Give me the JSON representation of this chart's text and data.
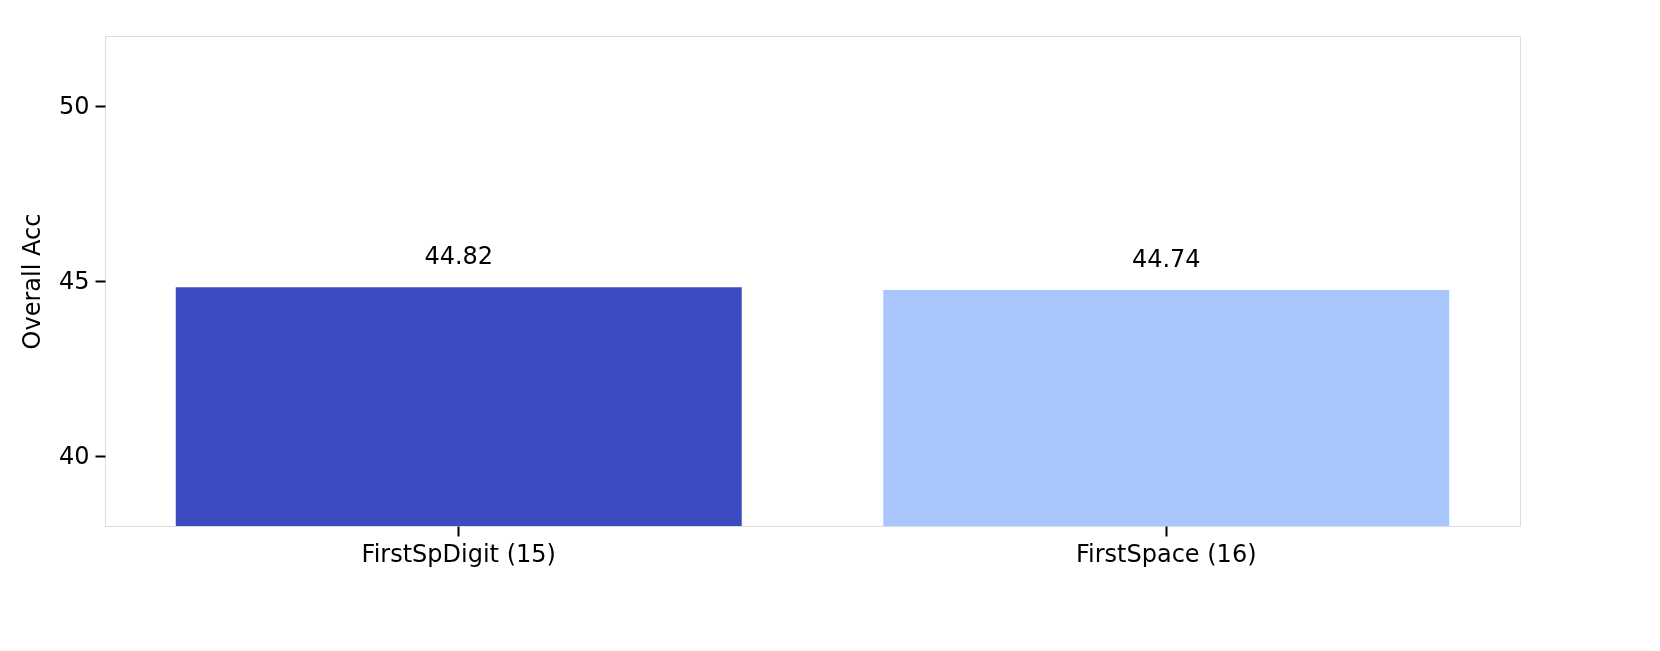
{
  "chart_data": {
    "type": "bar",
    "ylabel": "Overall Acc",
    "categories": [
      "FirstSpDigit (15)",
      "FirstSpace (16)"
    ],
    "values": [
      44.82,
      44.74
    ],
    "colors": [
      "#3b4cc0",
      "#aac7fd"
    ],
    "ylim": [
      38,
      52
    ],
    "yticks": [
      40,
      45,
      50
    ],
    "grid": false,
    "data_labels": true
  }
}
